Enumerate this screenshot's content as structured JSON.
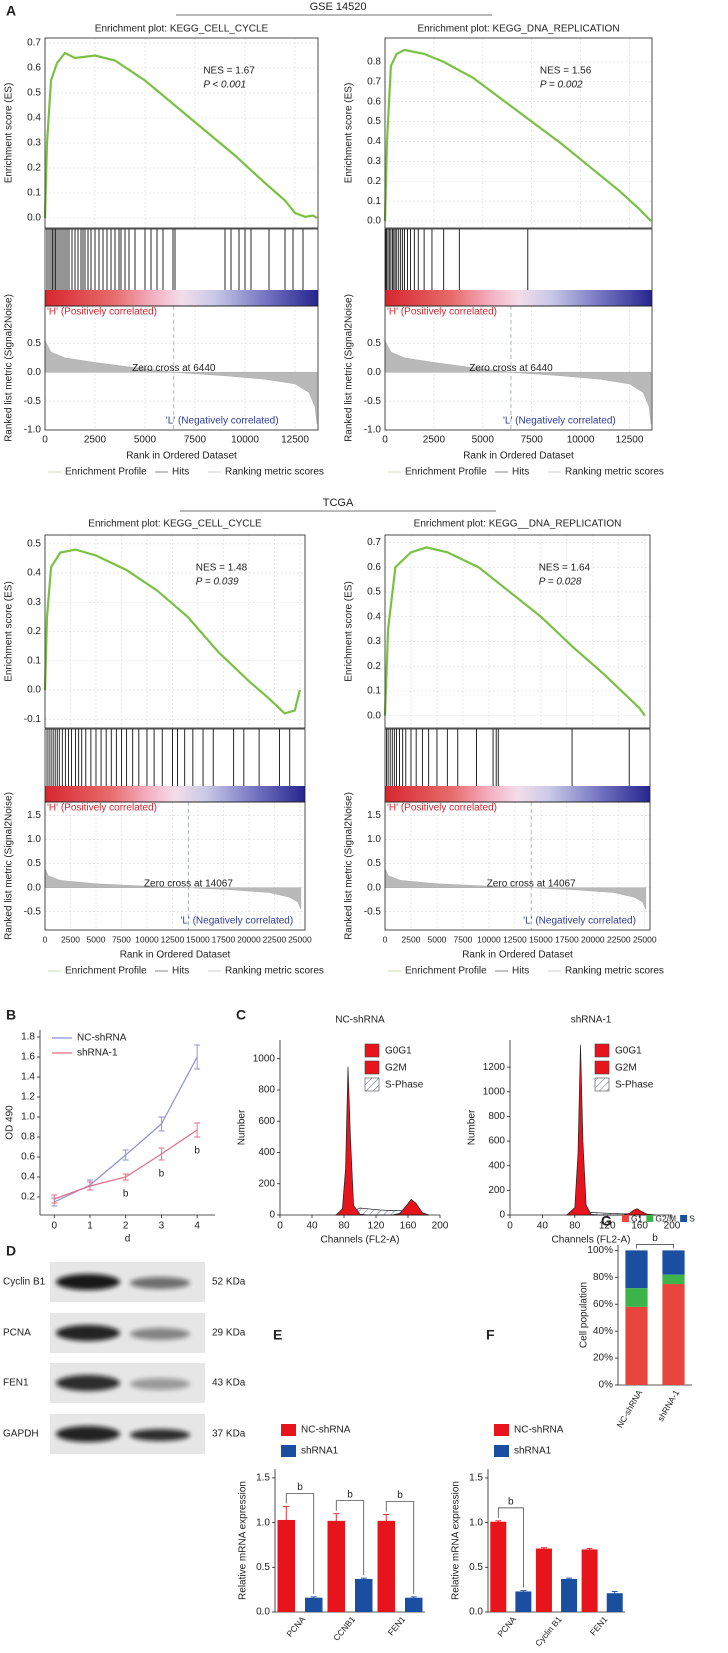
{
  "panel_labels": [
    "A",
    "B",
    "C",
    "D",
    "E",
    "F",
    "G"
  ],
  "group_titles": [
    "GSE 14520",
    "TCGA"
  ],
  "blot": {
    "rows": [
      {
        "protein": "Cyclin B1",
        "size": "52 KDa"
      },
      {
        "protein": "PCNA",
        "size": "29 KDa"
      },
      {
        "protein": "FEN1",
        "size": "43 KDa"
      },
      {
        "protein": "GAPDH",
        "size": "37 KDa"
      }
    ]
  },
  "chart_data": [
    {
      "type": "gsea",
      "title": "Enrichment plot: KEGG_CELL_CYCLE",
      "ylabel": "Enrichment score (ES)",
      "metric_ylabel": "Ranked list metric (Signal2Noise)",
      "xlabel": "Rank in Ordered Dataset",
      "nes": "NES = 1.67",
      "p_value": "P < 0.001",
      "color": "#7ac143",
      "x": [
        0,
        100,
        300,
        600,
        1000,
        1500,
        2500,
        3500,
        5000,
        6500,
        8000,
        9500,
        11000,
        12000,
        12500,
        13000,
        13400,
        13600
      ],
      "values": [
        0,
        0.3,
        0.55,
        0.62,
        0.66,
        0.64,
        0.65,
        0.63,
        0.55,
        0.45,
        0.35,
        0.25,
        0.14,
        0.07,
        0.02,
        0.005,
        0.01,
        0
      ],
      "hits": [
        100,
        200,
        300,
        380,
        450,
        520,
        600,
        700,
        800,
        900,
        1000,
        1100,
        1200,
        1350,
        1500,
        1650,
        1800,
        1900,
        2000,
        2150,
        2300,
        2500,
        2700,
        2900,
        3100,
        3300,
        3500,
        3700,
        3800,
        4000,
        4200,
        4500,
        5000,
        5300,
        5600,
        5900,
        6400,
        6500,
        9000,
        9300,
        9700,
        10000,
        10300,
        11200,
        12000,
        12400,
        12900
      ],
      "metric_x": [
        0,
        300,
        1000,
        2500,
        4500,
        6440,
        9000,
        11000,
        12500,
        13200,
        13500,
        13600
      ],
      "metric_values": [
        0.55,
        0.35,
        0.25,
        0.17,
        0.08,
        0,
        -0.06,
        -0.12,
        -0.2,
        -0.35,
        -0.6,
        -0.9
      ],
      "zero_cross": 6440,
      "zero_cross_label": "Zero cross at 6440",
      "positive_label": "'H' (Positively correlated)",
      "negative_label": "'L' (Negatively correlated)",
      "legend": [
        "Enrichment Profile",
        "Hits",
        "Ranking metric scores"
      ],
      "xlim": [
        0,
        13650
      ],
      "xticks": [
        0,
        2500,
        5000,
        7500,
        10000,
        12500
      ],
      "ylim": [
        -0.04,
        0.72
      ],
      "yticks": [
        {
          "value": 0,
          "label": "0.0"
        },
        0.1,
        0.2,
        0.3,
        0.4,
        0.5,
        0.6,
        0.7
      ],
      "metric_ylim": [
        -1,
        1.15
      ],
      "metric_yticks": [
        {
          "value": -1,
          "label": "-1.0"
        },
        -0.5,
        {
          "value": 0,
          "label": "0.0"
        },
        0.5
      ]
    },
    {
      "type": "gsea",
      "title": "Enrichment plot: KEGG_DNA_REPLICATION",
      "ylabel": "Enrichment score (ES)",
      "metric_ylabel": "Ranked list metric (Signal2Noise)",
      "xlabel": "Rank in Ordered Dataset",
      "nes": "NES = 1.56",
      "p_value": "P = 0.002",
      "color": "#7ac143",
      "x": [
        0,
        100,
        300,
        600,
        1000,
        2000,
        3000,
        4500,
        6000,
        7500,
        9000,
        10500,
        12000,
        13000,
        13600
      ],
      "values": [
        0,
        0.4,
        0.78,
        0.84,
        0.86,
        0.84,
        0.8,
        0.72,
        0.61,
        0.5,
        0.39,
        0.27,
        0.15,
        0.06,
        0
      ],
      "hits": [
        30,
        80,
        150,
        220,
        300,
        380,
        450,
        520,
        600,
        700,
        800,
        900,
        1000,
        1150,
        1300,
        1500,
        1700,
        2000,
        2400,
        3000,
        3800,
        7300
      ],
      "metric_x": [
        0,
        300,
        1000,
        2500,
        4500,
        6440,
        9000,
        11000,
        12500,
        13200,
        13500,
        13600
      ],
      "metric_values": [
        0.55,
        0.35,
        0.25,
        0.17,
        0.08,
        0,
        -0.06,
        -0.12,
        -0.2,
        -0.35,
        -0.6,
        -0.9
      ],
      "zero_cross": 6440,
      "zero_cross_label": "Zero cross at 6440",
      "positive_label": "'H' (Positively correlated)",
      "negative_label": "'L' (Negatively correlated)",
      "legend": [
        "Enrichment Profile",
        "Hits",
        "Ranking metric scores"
      ],
      "xlim": [
        0,
        13650
      ],
      "xticks": [
        0,
        2500,
        5000,
        7500,
        10000,
        12500
      ],
      "ylim": [
        -0.035,
        0.92
      ],
      "yticks": [
        {
          "value": 0,
          "label": "0.0"
        },
        0.1,
        0.2,
        0.3,
        0.4,
        0.5,
        0.6,
        0.7,
        0.8
      ],
      "metric_ylim": [
        -1,
        1.15
      ],
      "metric_yticks": [
        {
          "value": -1,
          "label": "-1.0"
        },
        -0.5,
        {
          "value": 0,
          "label": "0.0"
        },
        0.5
      ]
    },
    {
      "type": "gsea",
      "title": "Enrichment plot: KEGG_CELL_CYCLE",
      "ylabel": "Enrichment score (ES)",
      "metric_ylabel": "Ranked list metric (Signal2Noise)",
      "xlabel": "Rank in Ordered Dataset",
      "nes": "NES = 1.48",
      "p_value": "P = 0.039",
      "color": "#7ac143",
      "x": [
        0,
        200,
        600,
        1500,
        3000,
        5000,
        8000,
        11000,
        14000,
        17000,
        20000,
        22000,
        23500,
        24500,
        25000
      ],
      "values": [
        0,
        0.25,
        0.42,
        0.47,
        0.48,
        0.46,
        0.41,
        0.34,
        0.25,
        0.13,
        0.03,
        -0.03,
        -0.08,
        -0.07,
        0
      ],
      "hits": [
        200,
        400,
        600,
        800,
        1000,
        1200,
        1400,
        1700,
        2000,
        2300,
        2600,
        3000,
        3300,
        3600,
        4000,
        4500,
        5000,
        5500,
        6000,
        6500,
        7000,
        7500,
        8000,
        8600,
        9200,
        10000,
        10700,
        11500,
        12500,
        13000,
        13700,
        14500,
        15500,
        16500,
        18500,
        19500,
        21000,
        23000,
        24000
      ],
      "metric_x": [
        0,
        300,
        1500,
        5000,
        10000,
        14067,
        18000,
        22000,
        24000,
        24800,
        25100
      ],
      "metric_values": [
        0.4,
        0.25,
        0.15,
        0.08,
        0.03,
        0,
        -0.04,
        -0.1,
        -0.2,
        -0.3,
        -0.45
      ],
      "zero_cross": 14067,
      "zero_cross_label": "Zero cross at 14067",
      "positive_label": "'H' (Positively correlated)",
      "negative_label": "'L' (Negatively correlated)",
      "legend": [
        "Enrichment Profile",
        "Hits",
        "Ranking metric scores"
      ],
      "xlim": [
        0,
        25500
      ],
      "xticks": [
        0,
        2500,
        5000,
        7500,
        10000,
        12500,
        15000,
        17500,
        20000,
        22500,
        25000
      ],
      "ylim": [
        -0.13,
        0.53
      ],
      "yticks": [
        -0.1,
        {
          "value": 0,
          "label": "0.0"
        },
        0.1,
        0.2,
        0.3,
        0.4,
        0.5
      ],
      "metric_ylim": [
        -0.88,
        1.78
      ],
      "metric_yticks": [
        -0.5,
        {
          "value": 0,
          "label": "0.0"
        },
        0.5,
        {
          "value": 1,
          "label": "1.0"
        },
        1.5
      ]
    },
    {
      "type": "gsea",
      "title": "Enrichment plot: KEGG__DNA_REPLICATION",
      "ylabel": "Enrichment score (ES)",
      "metric_ylabel": "Ranked list metric (Signal2Noise)",
      "xlabel": "Rank in Ordered Dataset",
      "nes": "NES = 1.64",
      "p_value": "P = 0.028",
      "color": "#7ac143",
      "x": [
        0,
        300,
        1000,
        2500,
        4000,
        6000,
        9000,
        12000,
        15000,
        18000,
        21000,
        23500,
        24500,
        25000
      ],
      "values": [
        0,
        0.35,
        0.6,
        0.66,
        0.68,
        0.66,
        0.6,
        0.5,
        0.4,
        0.28,
        0.17,
        0.07,
        0.03,
        0
      ],
      "hits": [
        150,
        300,
        500,
        700,
        900,
        1100,
        1400,
        1700,
        2000,
        2500,
        3000,
        3600,
        4200,
        5000,
        6000,
        7000,
        8800,
        10400,
        10700,
        10900,
        18000,
        23500
      ],
      "metric_x": [
        0,
        300,
        1500,
        5000,
        10000,
        14067,
        18000,
        22000,
        24000,
        24800,
        25100
      ],
      "metric_values": [
        0.4,
        0.25,
        0.15,
        0.08,
        0.03,
        0,
        -0.04,
        -0.1,
        -0.2,
        -0.3,
        -0.45
      ],
      "zero_cross": 14067,
      "zero_cross_label": "Zero cross at 14067",
      "positive_label": "'H' (Positively correlated)",
      "negative_label": "'L' (Negatively correlated)",
      "legend": [
        "Enrichment Profile",
        "Hits",
        "Ranking metric scores"
      ],
      "xlim": [
        0,
        25500
      ],
      "xticks": [
        0,
        2500,
        5000,
        7500,
        10000,
        12500,
        15000,
        17500,
        20000,
        22500,
        25000
      ],
      "ylim": [
        -0.05,
        0.73
      ],
      "yticks": [
        {
          "value": 0,
          "label": "0.0"
        },
        0.1,
        0.2,
        0.3,
        0.4,
        0.5,
        0.6,
        0.7
      ],
      "metric_ylim": [
        -0.88,
        1.78
      ],
      "metric_yticks": [
        -0.5,
        {
          "value": 0,
          "label": "0.0"
        },
        0.5,
        {
          "value": 1,
          "label": "1.0"
        },
        1.5
      ]
    },
    {
      "type": "line",
      "xlabel": "d",
      "ylabel": "OD 490",
      "x": [
        0,
        1,
        2,
        3,
        4
      ],
      "xlim": [
        -0.4,
        4.5
      ],
      "xticks": [
        0,
        1,
        2,
        3,
        4
      ],
      "ylim": [
        0.02,
        1.87
      ],
      "yticks": [
        0.2,
        0.4,
        0.6,
        0.8,
        {
          "value": 1,
          "label": "1.0"
        },
        1.2,
        1.4,
        1.6,
        1.8
      ],
      "series": [
        {
          "name": "NC-shRNA",
          "color": "#8b8fd1",
          "values": [
            0.15,
            0.32,
            0.62,
            0.93,
            1.6
          ],
          "errors": [
            0.04,
            0.05,
            0.05,
            0.07,
            0.12
          ]
        },
        {
          "name": "shRNA-1",
          "color": "#e46c84",
          "values": [
            0.18,
            0.31,
            0.4,
            0.63,
            0.87
          ],
          "errors": [
            0.04,
            0.04,
            0.03,
            0.06,
            0.07
          ]
        }
      ],
      "annotations": [
        {
          "text": "b",
          "x": 2
        },
        {
          "text": "b",
          "x": 3
        },
        {
          "text": "b",
          "x": 4
        }
      ]
    },
    {
      "type": "area",
      "title": "NC-shRNA",
      "xlabel": "Channels (FL2-A)",
      "ylabel": "Number",
      "x": [
        70,
        78,
        82,
        85,
        88,
        92,
        100,
        110,
        125,
        140,
        150,
        158,
        164,
        170,
        178,
        186
      ],
      "xlim": [
        0,
        200
      ],
      "xticks": [
        0,
        40,
        80,
        120,
        160,
        200
      ],
      "ylim": [
        0,
        1120
      ],
      "yticks": [
        0,
        200,
        400,
        600,
        800,
        1000
      ],
      "series": [
        {
          "name": "G0G1",
          "color": "#e8141c",
          "values": [
            0,
            40,
            300,
            950,
            500,
            60,
            5,
            0,
            0,
            0,
            0,
            0,
            0,
            0,
            0,
            0
          ]
        },
        {
          "name": "G2M",
          "color": "#e8141c",
          "values": [
            0,
            0,
            0,
            0,
            0,
            0,
            0,
            0,
            0,
            0,
            10,
            60,
            100,
            75,
            15,
            0
          ]
        },
        {
          "name": "S-Phase",
          "color": "#5b6bb0",
          "fill": "hatch",
          "values": [
            0,
            0,
            0,
            0,
            0,
            25,
            45,
            40,
            32,
            28,
            30,
            25,
            15,
            8,
            2,
            0
          ]
        }
      ]
    },
    {
      "type": "area",
      "title": "shRNA-1",
      "xlabel": "Channels (FL2-A)",
      "ylabel": "Number",
      "x": [
        70,
        80,
        84,
        87,
        90,
        94,
        100,
        110,
        125,
        140,
        148,
        153,
        157,
        162,
        170,
        180
      ],
      "xlim": [
        0,
        200
      ],
      "xticks": [
        0,
        40,
        80,
        120,
        160,
        200
      ],
      "ylim": [
        0,
        1420
      ],
      "yticks": [
        0,
        200,
        400,
        600,
        800,
        1000,
        1200
      ],
      "series": [
        {
          "name": "G0G1",
          "color": "#e8141c",
          "values": [
            0,
            60,
            500,
            1380,
            600,
            80,
            5,
            0,
            0,
            0,
            0,
            0,
            0,
            0,
            0,
            0
          ]
        },
        {
          "name": "G2M",
          "color": "#e8141c",
          "values": [
            0,
            0,
            0,
            0,
            0,
            0,
            0,
            0,
            0,
            2,
            15,
            40,
            50,
            30,
            5,
            0
          ]
        },
        {
          "name": "S-Phase",
          "color": "#5b6bb0",
          "fill": "hatch",
          "values": [
            0,
            0,
            0,
            0,
            0,
            10,
            20,
            18,
            12,
            10,
            10,
            12,
            10,
            8,
            5,
            0
          ]
        }
      ]
    },
    {
      "type": "bar",
      "ylabel": "Relative mRNA expression",
      "categories": [
        "PCNA",
        "CCNB1",
        "FEN1"
      ],
      "ylim": [
        0,
        1.6
      ],
      "yticks": [
        {
          "value": 0,
          "label": "0.0"
        },
        0.5,
        {
          "value": 1,
          "label": "1.0"
        },
        1.5
      ],
      "series": [
        {
          "name": "NC-shRNA",
          "color": "#e8141c",
          "values": [
            1.03,
            1.02,
            1.02
          ],
          "errors": [
            0.15,
            0.08,
            0.07
          ]
        },
        {
          "name": "shRNA1",
          "color": "#1a4ea0",
          "values": [
            0.16,
            0.37,
            0.16
          ],
          "errors": [
            0.01,
            0.01,
            0.01
          ]
        }
      ],
      "annotations": [
        {
          "text": "b",
          "x": 0
        },
        {
          "text": "b",
          "x": 1
        },
        {
          "text": "b",
          "x": 2
        }
      ]
    },
    {
      "type": "bar",
      "ylabel": "Relative mRNA expression",
      "categories": [
        "PCNA",
        "Cyclin B1",
        "FEN1"
      ],
      "ylim": [
        0,
        1.6
      ],
      "yticks": [
        {
          "value": 0,
          "label": "0.0"
        },
        0.5,
        {
          "value": 1,
          "label": "1.0"
        },
        1.5
      ],
      "series": [
        {
          "name": "NC-shRNA",
          "color": "#e8141c",
          "values": [
            1.01,
            0.71,
            0.7
          ],
          "errors": [
            0.01,
            0.01,
            0.01
          ]
        },
        {
          "name": "shRNA1",
          "color": "#1a4ea0",
          "values": [
            0.23,
            0.37,
            0.21
          ],
          "errors": [
            0.01,
            0.01,
            0.02
          ]
        }
      ],
      "annotations": [
        {
          "text": "b",
          "x": 0
        }
      ]
    },
    {
      "type": "stacked",
      "ylabel": "Cell population",
      "categories": [
        "NC-shRNA",
        "shRNA-1"
      ],
      "ylim": [
        0,
        104
      ],
      "yticks": [
        {
          "value": 0,
          "label": "0%"
        },
        {
          "value": 20,
          "label": "20%"
        },
        {
          "value": 40,
          "label": "40%"
        },
        {
          "value": 60,
          "label": "60%"
        },
        {
          "value": 80,
          "label": "80%"
        },
        {
          "value": 100,
          "label": "100%"
        }
      ],
      "series": [
        {
          "name": "G1",
          "color": "#e8463c",
          "values": [
            58,
            75
          ]
        },
        {
          "name": "G2/M",
          "color": "#3cb44a",
          "values": [
            14,
            7
          ]
        },
        {
          "name": "S",
          "color": "#1a4ea0",
          "values": [
            28,
            18
          ]
        }
      ],
      "annotations": [
        {
          "text": "b"
        }
      ]
    }
  ]
}
